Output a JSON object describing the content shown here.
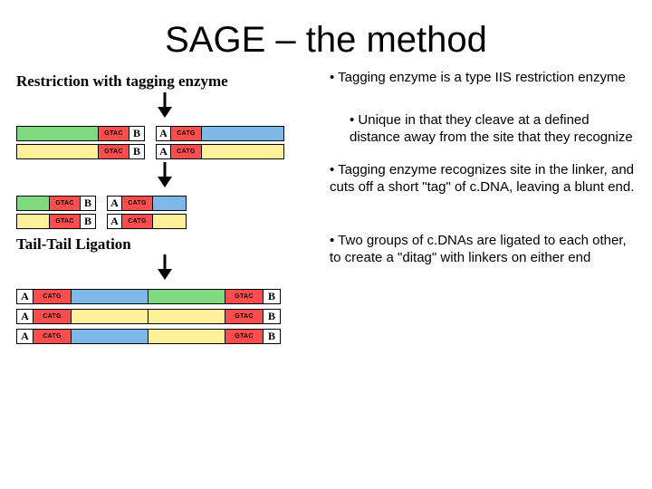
{
  "title": "SAGE – the method",
  "bullets": {
    "b1": "• Tagging enzyme is a type IIS restriction enzyme",
    "b2": "• Unique in that they cleave at a defined distance away from the site that they recognize",
    "b3": "• Tagging enzyme recognizes site in the linker, and cuts off a short \"tag\" of c.DNA, leaving a blunt end.",
    "b4": "• Two groups of c.DNAs are ligated to each other, to create a \"ditag\" with linkers on either end"
  },
  "steps": {
    "restriction": "Restriction with tagging enzyme",
    "ligation": "Tail-Tail Ligation"
  },
  "labels": {
    "A": "A",
    "B": "B",
    "CATG": "CATG",
    "GTAC": "GTAC"
  },
  "colors": {
    "red": "#ff4d4d",
    "blue": "#7db8e8",
    "yellow": "#fff099",
    "green": "#7fd97f",
    "border": "#000000",
    "bg": "#ffffff"
  },
  "diagram": {
    "fullFragments": [
      {
        "side": "right",
        "linker": "B",
        "motif": "GTAC",
        "fill": "green"
      },
      {
        "side": "left",
        "linker": "A",
        "motif": "CATG",
        "fill": "blue"
      },
      {
        "side": "right",
        "linker": "B",
        "motif": "GTAC",
        "fill": "yellow"
      },
      {
        "side": "left",
        "linker": "A",
        "motif": "CATG",
        "fill": "yellow"
      }
    ],
    "shortFragments": [
      {
        "side": "right",
        "linker": "B",
        "motif": "GTAC",
        "fill": "green"
      },
      {
        "side": "left",
        "linker": "A",
        "motif": "CATG",
        "fill": "blue"
      },
      {
        "side": "right",
        "linker": "B",
        "motif": "GTAC",
        "fill": "yellow"
      },
      {
        "side": "left",
        "linker": "A",
        "motif": "CATG",
        "fill": "yellow"
      }
    ],
    "ditags": [
      {
        "leftFill": "blue",
        "rightFill": "green"
      },
      {
        "leftFill": "yellow",
        "rightFill": "yellow"
      },
      {
        "leftFill": "blue",
        "rightFill": "yellow"
      }
    ]
  }
}
